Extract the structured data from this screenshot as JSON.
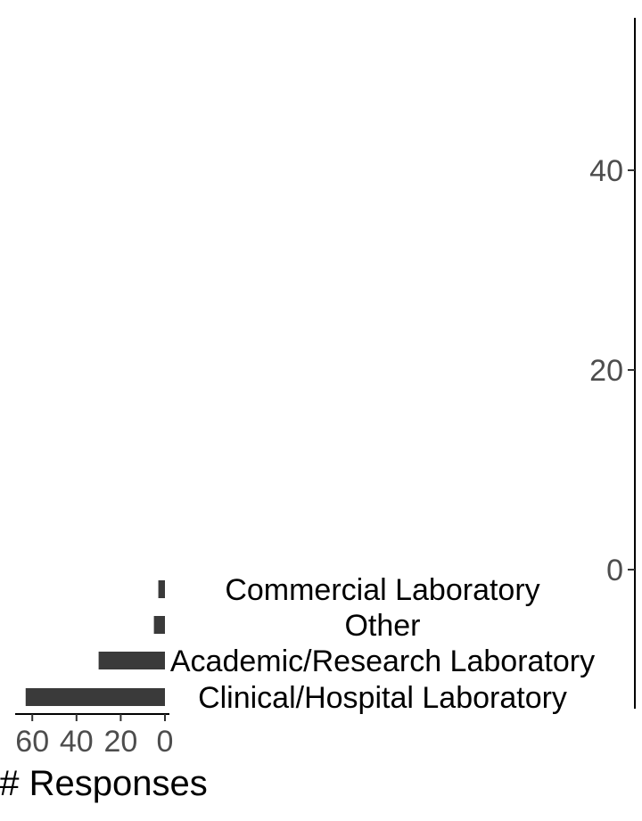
{
  "chart_data": [
    {
      "type": "bar",
      "orientation": "horizontal",
      "x_axis_reversed": true,
      "categories": [
        "Clinical/Hospital Laboratory",
        "Academic/Research Laboratory",
        "Other",
        "Commercial Laboratory"
      ],
      "values": [
        63,
        30,
        5,
        3
      ],
      "xlabel": "# Responses",
      "xticks": [
        "60",
        "40",
        "20",
        "0"
      ],
      "xlim": [
        0,
        65
      ],
      "bar_color": "#3a3a3a",
      "grid": false
    },
    {
      "type": "bar",
      "orientation": "vertical",
      "yticks": [
        "0",
        "20",
        "40"
      ],
      "ylim": [
        0,
        55
      ],
      "grid": false
    }
  ]
}
